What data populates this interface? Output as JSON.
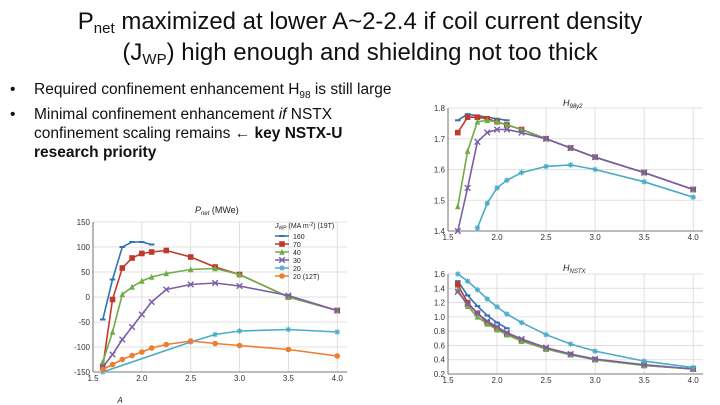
{
  "slide": {
    "title_line1_a": "P",
    "title_line1_sub": "net",
    "title_line1_b": " maximized at lower A~2-2.4 if coil current density",
    "title_line2_a": "(J",
    "title_line2_sub": "WP",
    "title_line2_b": ") high enough and shielding not too thick",
    "bullets": [
      {
        "a": "Required confinement enhancement H",
        "sub": "98",
        "b": " is still large"
      },
      {
        "a": "Minimal confinement enhancement ",
        "it": "if",
        "b": " NSTX confinement scaling remains ",
        "arrow": "←",
        "bold": " key NSTX-U research priority"
      }
    ],
    "bullet_glyph": "•"
  },
  "chart_data": [
    {
      "type": "line",
      "title": "P",
      "title_sub": "net",
      "title_unit": " (MWe)",
      "xlabel": "A",
      "ylabel": "",
      "xlim": [
        1.5,
        4.1
      ],
      "ylim": [
        -150,
        150
      ],
      "xticks": [
        1.5,
        2.0,
        2.5,
        3.0,
        3.5,
        4.0
      ],
      "yticks": [
        -150,
        -100,
        -50,
        0,
        50,
        100,
        150
      ],
      "grid": true,
      "legend": {
        "placement": "top-right",
        "title": "J",
        "title_sub": "WP",
        "title_rest": " (MA m",
        "title_sup": "-2",
        "title_end": ") (19T)"
      },
      "series": [
        {
          "name": "160",
          "color": "#2e75b6",
          "marker": "dash",
          "x": [
            1.6,
            1.7,
            1.8,
            1.9,
            2.0,
            2.1
          ],
          "y": [
            -45,
            35,
            100,
            110,
            110,
            105
          ]
        },
        {
          "name": "70",
          "color": "#c0392b",
          "marker": "square",
          "x": [
            1.6,
            1.7,
            1.8,
            1.9,
            2.0,
            2.1,
            2.25,
            2.5,
            2.75,
            3.0,
            3.5,
            4.0
          ],
          "y": [
            -140,
            -5,
            58,
            78,
            87,
            90,
            93,
            80,
            60,
            45,
            0,
            -27
          ]
        },
        {
          "name": "40",
          "color": "#70ad47",
          "marker": "triangle",
          "x": [
            1.6,
            1.7,
            1.8,
            1.9,
            2.0,
            2.1,
            2.25,
            2.5,
            2.75,
            3.0,
            3.5,
            4.0
          ],
          "y": [
            -130,
            -70,
            5,
            20,
            32,
            40,
            47,
            55,
            57,
            45,
            0,
            -27
          ]
        },
        {
          "name": "30",
          "color": "#7b5ea7",
          "marker": "x",
          "x": [
            1.6,
            1.7,
            1.8,
            1.9,
            2.0,
            2.1,
            2.25,
            2.5,
            2.75,
            3.0,
            3.5,
            4.0
          ],
          "y": [
            -140,
            -115,
            -85,
            -60,
            -35,
            -10,
            15,
            25,
            28,
            22,
            3,
            -27
          ]
        },
        {
          "name": "20",
          "color": "#4bacc6",
          "marker": "star",
          "x": [
            1.6,
            2.5,
            2.75,
            3.0,
            3.5,
            4.0
          ],
          "y": [
            -150,
            -90,
            -75,
            -68,
            -65,
            -70
          ]
        },
        {
          "name": "20 (12T)",
          "color": "#ed7d31",
          "marker": "circle",
          "x": [
            1.6,
            1.7,
            1.8,
            1.9,
            2.0,
            2.1,
            2.25,
            2.5,
            2.75,
            3.0,
            3.5,
            4.0
          ],
          "y": [
            -145,
            -135,
            -125,
            -117,
            -110,
            -102,
            -95,
            -88,
            -93,
            -97,
            -105,
            -118
          ]
        }
      ]
    },
    {
      "type": "line",
      "title": "H",
      "title_sub": "98y2",
      "xlabel": "",
      "xlim": [
        1.5,
        4.1
      ],
      "ylim": [
        1.4,
        1.8
      ],
      "xticks": [
        1.5,
        2.0,
        2.5,
        3.0,
        3.5,
        4.0
      ],
      "yticks": [
        1.4,
        1.5,
        1.6,
        1.7,
        1.8
      ],
      "grid": true,
      "series": [
        {
          "name": "",
          "color": "#2e75b6",
          "marker": "dash",
          "x": [
            1.6,
            1.7,
            1.8,
            1.9,
            2.0,
            2.1
          ],
          "y": [
            1.76,
            1.78,
            1.775,
            1.77,
            1.765,
            1.76
          ]
        },
        {
          "name": "",
          "color": "#c0392b",
          "marker": "square",
          "x": [
            1.6,
            1.7,
            1.8,
            1.9,
            2.0,
            2.1,
            2.25,
            2.5,
            2.75,
            3.0,
            3.5,
            4.0
          ],
          "y": [
            1.72,
            1.77,
            1.77,
            1.765,
            1.755,
            1.745,
            1.73,
            1.7,
            1.67,
            1.64,
            1.59,
            1.535
          ]
        },
        {
          "name": "",
          "color": "#70ad47",
          "marker": "triangle",
          "x": [
            1.6,
            1.7,
            1.8,
            1.9,
            2.0,
            2.1,
            2.25,
            2.5,
            2.75,
            3.0,
            3.5,
            4.0
          ],
          "y": [
            1.48,
            1.66,
            1.755,
            1.76,
            1.755,
            1.745,
            1.73,
            1.7,
            1.67,
            1.64,
            1.59,
            1.535
          ]
        },
        {
          "name": "",
          "color": "#7b5ea7",
          "marker": "x",
          "x": [
            1.6,
            1.7,
            1.8,
            1.9,
            2.0,
            2.1,
            2.25,
            2.5,
            2.75,
            3.0,
            3.5,
            4.0
          ],
          "y": [
            1.4,
            1.54,
            1.69,
            1.72,
            1.73,
            1.73,
            1.72,
            1.7,
            1.67,
            1.64,
            1.59,
            1.535
          ]
        },
        {
          "name": "",
          "color": "#4bacc6",
          "marker": "star",
          "x": [
            1.8,
            1.9,
            2.0,
            2.1,
            2.25,
            2.5,
            2.75,
            3.0,
            3.5,
            4.0
          ],
          "y": [
            1.41,
            1.49,
            1.54,
            1.565,
            1.59,
            1.61,
            1.615,
            1.6,
            1.56,
            1.51
          ]
        }
      ]
    },
    {
      "type": "line",
      "title": "H",
      "title_sub": "NSTX",
      "xlabel": "",
      "xlim": [
        1.5,
        4.1
      ],
      "ylim": [
        0.2,
        1.6
      ],
      "xticks": [
        1.5,
        2.0,
        2.5,
        3.0,
        3.5,
        4.0
      ],
      "yticks": [
        0.2,
        0.4,
        0.6,
        0.8,
        1.0,
        1.2,
        1.4,
        1.6
      ],
      "grid": true,
      "series": [
        {
          "name": "",
          "color": "#2e75b6",
          "marker": "dash",
          "x": [
            1.6,
            1.7,
            1.8,
            1.9,
            2.0,
            2.1
          ],
          "y": [
            1.5,
            1.3,
            1.15,
            1.02,
            0.92,
            0.84
          ]
        },
        {
          "name": "",
          "color": "#c0392b",
          "marker": "square",
          "x": [
            1.6,
            1.7,
            1.8,
            1.9,
            2.0,
            2.1,
            2.25,
            2.5,
            2.75,
            3.0,
            3.5,
            4.0
          ],
          "y": [
            1.45,
            1.2,
            1.05,
            0.92,
            0.84,
            0.76,
            0.67,
            0.55,
            0.47,
            0.4,
            0.32,
            0.27
          ]
        },
        {
          "name": "",
          "color": "#70ad47",
          "marker": "triangle",
          "x": [
            1.6,
            1.7,
            1.8,
            1.9,
            2.0,
            2.1,
            2.25,
            2.5,
            2.75,
            3.0,
            3.5,
            4.0
          ],
          "y": [
            1.38,
            1.15,
            1.0,
            0.9,
            0.82,
            0.75,
            0.66,
            0.55,
            0.47,
            0.4,
            0.32,
            0.27
          ]
        },
        {
          "name": "",
          "color": "#7b5ea7",
          "marker": "x",
          "x": [
            1.6,
            1.7,
            1.8,
            1.9,
            2.0,
            2.1,
            2.25,
            2.5,
            2.75,
            3.0,
            3.5,
            4.0
          ],
          "y": [
            1.35,
            1.18,
            1.05,
            0.94,
            0.86,
            0.78,
            0.69,
            0.57,
            0.48,
            0.41,
            0.33,
            0.27
          ]
        },
        {
          "name": "",
          "color": "#4bacc6",
          "marker": "star",
          "x": [
            1.6,
            1.7,
            1.8,
            1.9,
            2.0,
            2.1,
            2.25,
            2.5,
            2.75,
            3.0,
            3.5,
            4.0
          ],
          "y": [
            1.6,
            1.5,
            1.38,
            1.25,
            1.14,
            1.04,
            0.92,
            0.75,
            0.62,
            0.52,
            0.38,
            0.29
          ]
        }
      ]
    }
  ]
}
